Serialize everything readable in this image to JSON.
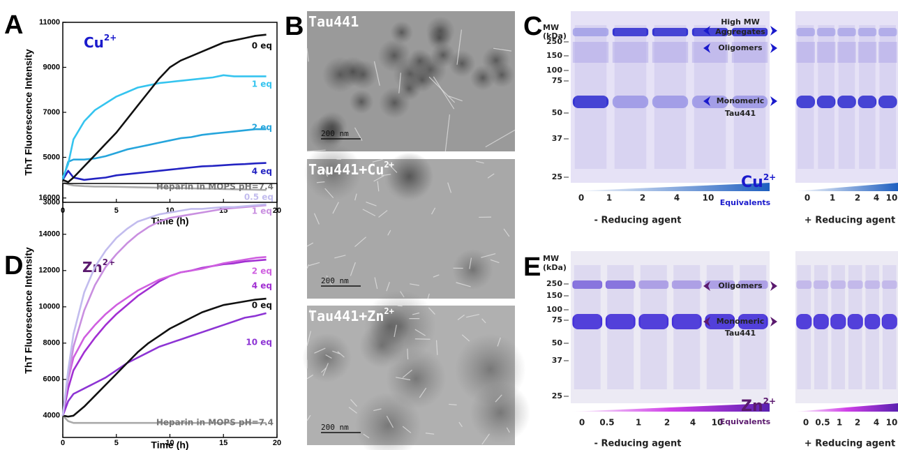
{
  "chart_data": [
    {
      "type": "line",
      "panel_label": "A",
      "title": "Cu",
      "title_sup": "2+",
      "xlabel": "Time (h)",
      "ylabel": "ThT Fluorescence Intensity",
      "xlim": [
        0,
        20
      ],
      "xticks": [
        0,
        5,
        10,
        15,
        20
      ],
      "ylim": [
        3000,
        11000
      ],
      "yticks": [
        3000,
        5000,
        7000,
        9000,
        11000
      ],
      "x": [
        0,
        0.5,
        1,
        2,
        3,
        4,
        5,
        6,
        7,
        8,
        9,
        10,
        11,
        12,
        13,
        14,
        15,
        16,
        17,
        18,
        19
      ],
      "series": [
        {
          "name": "0 eq",
          "color": "#111111",
          "values": [
            4000,
            3900,
            4100,
            4600,
            5100,
            5600,
            6100,
            6700,
            7300,
            7900,
            8500,
            9000,
            9300,
            9500,
            9700,
            9900,
            10100,
            10200,
            10300,
            10400,
            10450
          ]
        },
        {
          "name": "1 eq",
          "color": "#35c4ef",
          "values": [
            4100,
            4700,
            5800,
            6600,
            7100,
            7400,
            7700,
            7900,
            8100,
            8200,
            8300,
            8350,
            8400,
            8450,
            8500,
            8550,
            8650,
            8600,
            8600,
            8600,
            8600
          ]
        },
        {
          "name": "2 eq",
          "color": "#26a5dc",
          "values": [
            4000,
            4800,
            4900,
            4900,
            4950,
            5050,
            5200,
            5350,
            5450,
            5550,
            5650,
            5750,
            5850,
            5900,
            6000,
            6050,
            6100,
            6150,
            6200,
            6250,
            6250
          ]
        },
        {
          "name": "4 eq",
          "color": "#2323c2",
          "values": [
            4000,
            4400,
            4100,
            4000,
            4050,
            4100,
            4200,
            4250,
            4300,
            4350,
            4400,
            4450,
            4500,
            4550,
            4600,
            4620,
            4650,
            4680,
            4700,
            4730,
            4750
          ]
        },
        {
          "name": "Heparin in MOPS pH=7.4",
          "color": "#aaaaaa",
          "values": [
            3900,
            3800,
            3750,
            3720,
            3700,
            3700,
            3690,
            3680,
            3670,
            3660,
            3650,
            3640,
            3630,
            3620,
            3610,
            3600,
            3590,
            3580,
            3570,
            3560,
            3550
          ]
        }
      ]
    },
    {
      "type": "line",
      "panel_label": "D",
      "title": "Zn",
      "title_sup": "2+",
      "xlabel": "Time (h)",
      "ylabel": "ThT Fluorescence Intensity",
      "xlim": [
        0,
        20
      ],
      "xticks": [
        0,
        5,
        10,
        15,
        20
      ],
      "ylim": [
        2800,
        16800
      ],
      "yticks": [
        4000,
        6000,
        8000,
        10000,
        12000,
        14000,
        16000
      ],
      "x": [
        0,
        0.5,
        1,
        2,
        3,
        4,
        5,
        6,
        7,
        8,
        9,
        10,
        11,
        12,
        13,
        14,
        15,
        16,
        17,
        18,
        19
      ],
      "series": [
        {
          "name": "0.5 eq",
          "color": "#c2bcee",
          "values": [
            4000,
            6500,
            8500,
            10800,
            12200,
            13100,
            13800,
            14300,
            14700,
            14900,
            15100,
            15200,
            15300,
            15400,
            15400,
            15450,
            15500,
            15500,
            15550,
            15600,
            15650
          ]
        },
        {
          "name": "1 eq",
          "color": "#c98fe0",
          "values": [
            4000,
            6000,
            7800,
            9800,
            11200,
            12200,
            12900,
            13500,
            14000,
            14400,
            14700,
            14900,
            15000,
            15100,
            15200,
            15300,
            15400,
            15450,
            15500,
            15550,
            15600
          ]
        },
        {
          "name": "2 eq",
          "color": "#cf5fe0",
          "values": [
            4000,
            6000,
            7200,
            8300,
            9000,
            9600,
            10100,
            10500,
            10900,
            11200,
            11500,
            11700,
            11900,
            12000,
            12100,
            12250,
            12400,
            12500,
            12600,
            12700,
            12750
          ]
        },
        {
          "name": "4 eq",
          "color": "#a12fd2",
          "values": [
            4000,
            5500,
            6500,
            7500,
            8300,
            9000,
            9600,
            10100,
            10600,
            11000,
            11400,
            11700,
            11900,
            12000,
            12150,
            12250,
            12350,
            12400,
            12500,
            12550,
            12600
          ]
        },
        {
          "name": "0 eq",
          "color": "#111111",
          "values": [
            4000,
            3950,
            4000,
            4500,
            5100,
            5700,
            6300,
            6900,
            7500,
            8000,
            8400,
            8800,
            9100,
            9400,
            9700,
            9900,
            10100,
            10200,
            10300,
            10400,
            10450
          ]
        },
        {
          "name": "10 eq",
          "color": "#8d34d4",
          "values": [
            4000,
            4800,
            5200,
            5500,
            5800,
            6100,
            6500,
            6900,
            7200,
            7500,
            7800,
            8000,
            8200,
            8400,
            8600,
            8800,
            9000,
            9200,
            9400,
            9500,
            9650
          ]
        },
        {
          "name": "Heparin in MOPS pH=7.4",
          "color": "#aaaaaa",
          "values": [
            4000,
            3700,
            3600,
            3600,
            3600,
            3600,
            3600,
            3600,
            3600,
            3600,
            3600,
            3600,
            3600,
            3600,
            3600,
            3600,
            3600,
            3600,
            3600,
            3600,
            3600
          ]
        }
      ]
    }
  ],
  "micrographs": {
    "label": "B",
    "images": [
      {
        "title": "Tau441",
        "scale_bar": "200 nm"
      },
      {
        "title": "Tau441+Cu",
        "title_sup": "2+",
        "scale_bar": "200 nm"
      },
      {
        "title": "Tau441+Zn",
        "title_sup": "2+",
        "scale_bar": "200 nm"
      }
    ]
  },
  "gels": [
    {
      "label": "C",
      "mw_title": [
        "MW",
        "(kDa)"
      ],
      "markers": [
        250,
        150,
        100,
        75,
        50,
        37,
        25
      ],
      "lanes": [
        0,
        1,
        2,
        4,
        10
      ],
      "conditions": [
        "- Reducing agent",
        "+ Reducing agent"
      ],
      "annotations": [
        [
          "High MW",
          "Aggregates"
        ],
        [
          "Oligomers"
        ],
        [
          "Monomeric",
          "Tau441"
        ]
      ],
      "metal": "Cu",
      "metal_sup": "2+",
      "equivalents_label": "Equivalents"
    },
    {
      "label": "E",
      "mw_title": [
        "MW",
        "(kDa)"
      ],
      "markers": [
        250,
        150,
        100,
        75,
        50,
        37,
        25
      ],
      "lanes": [
        0,
        0.5,
        1,
        2,
        4,
        10
      ],
      "conditions": [
        "- Reducing agent",
        "+ Reducing agent"
      ],
      "annotations": [
        [
          "Oligomers"
        ],
        [
          "Monomeric",
          "Tau441"
        ]
      ],
      "metal": "Zn",
      "metal_sup": "2+",
      "equivalents_label": "Equivalents"
    }
  ]
}
